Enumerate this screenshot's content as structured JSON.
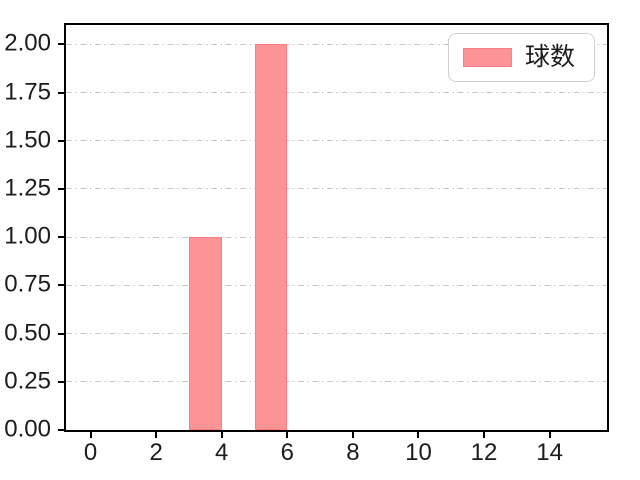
{
  "chart_data": {
    "type": "bar",
    "title": "",
    "xlabel": "",
    "ylabel": "",
    "xlim": [
      -0.75,
      15.75
    ],
    "ylim": [
      0,
      2.1
    ],
    "xticks": [
      0,
      2,
      4,
      6,
      8,
      10,
      12,
      14
    ],
    "yticks": [
      {
        "value": 0.0,
        "label": "0.00"
      },
      {
        "value": 0.25,
        "label": "0.25"
      },
      {
        "value": 0.5,
        "label": "0.50"
      },
      {
        "value": 0.75,
        "label": "0.75"
      },
      {
        "value": 1.0,
        "label": "1.00"
      },
      {
        "value": 1.25,
        "label": "1.25"
      },
      {
        "value": 1.5,
        "label": "1.50"
      },
      {
        "value": 1.75,
        "label": "1.75"
      },
      {
        "value": 2.0,
        "label": "2.00"
      }
    ],
    "grid": {
      "axis": "y",
      "style": "dash-dot",
      "color": "#c6c6cc"
    },
    "series": [
      {
        "name": "球数",
        "color": "#fc9496",
        "edge_color": "#f78085",
        "bars": [
          {
            "x_start": 3,
            "x_end": 4,
            "value": 1.0
          },
          {
            "x_start": 5,
            "x_end": 6,
            "value": 2.0
          }
        ]
      }
    ],
    "legend": {
      "position": "upper right",
      "entries": [
        "球数"
      ]
    },
    "spine_color": "#000000",
    "tick_color": "#000000",
    "text_color": "#1c1c1c"
  }
}
